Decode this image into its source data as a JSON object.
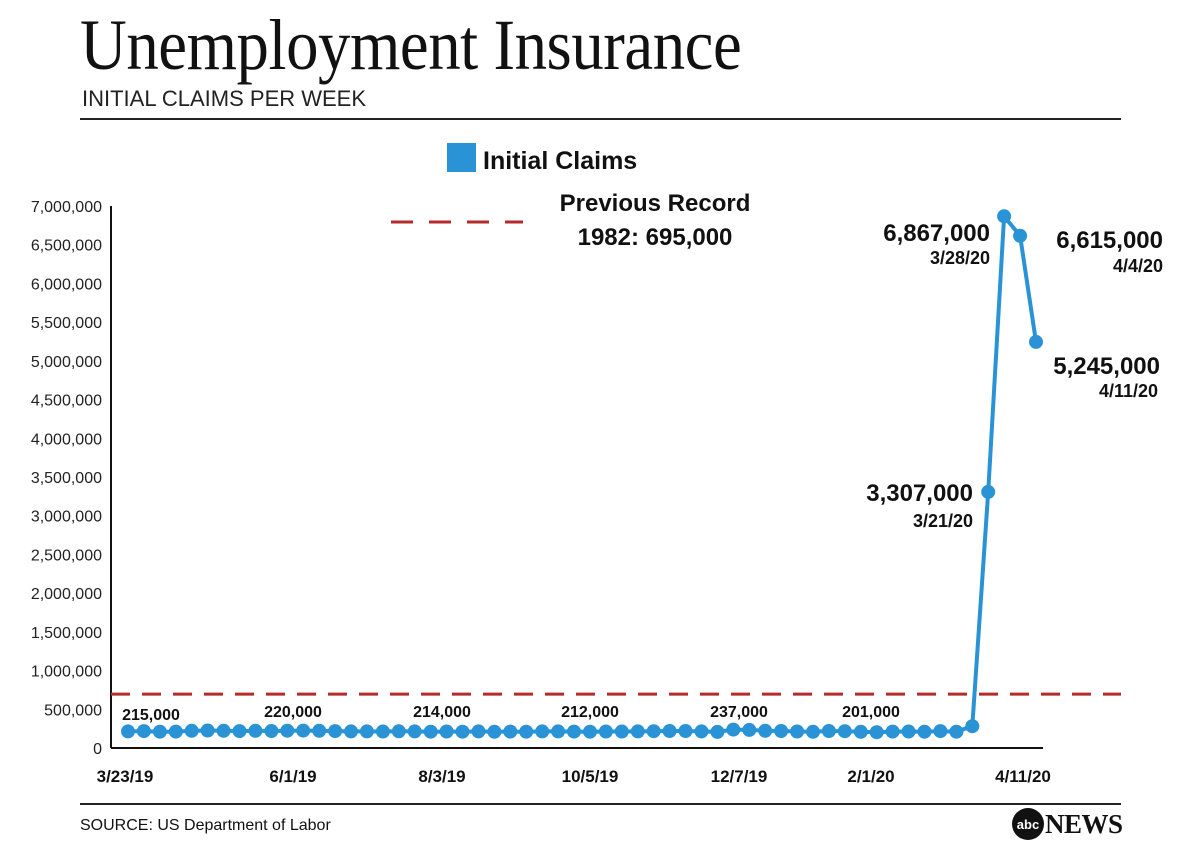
{
  "header": {
    "title": "Unemployment Insurance",
    "subtitle": "INITIAL CLAIMS PER WEEK"
  },
  "footer": {
    "source": "SOURCE: US Department of Labor",
    "logo_mark": "abc",
    "logo_text": "NEWS"
  },
  "colors": {
    "series": "#2a93d5",
    "record_line": "#b52a2a",
    "text": "#111111"
  },
  "chart_data": {
    "type": "line",
    "title": "Unemployment Insurance",
    "subtitle": "INITIAL CLAIMS PER WEEK",
    "legend": {
      "label": "Initial Claims",
      "placement": "top-center"
    },
    "ylim": [
      0,
      7000000
    ],
    "y_ticks": [
      "7,000,000",
      "6,500,000",
      "6,000,000",
      "5,500,000",
      "5,000,000",
      "4,500,000",
      "4,000,000",
      "3,500,000",
      "3,000,000",
      "2,500,000",
      "2,000,000",
      "1,500,000",
      "1,000,000",
      "500,000",
      "0"
    ],
    "x_tick_labels": [
      "3/23/19",
      "6/1/19",
      "8/3/19",
      "10/5/19",
      "12/7/19",
      "2/1/20",
      "4/11/20"
    ],
    "grid": false,
    "series": [
      {
        "name": "Initial Claims",
        "values": [
          215000,
          218000,
          210000,
          212000,
          222000,
          226000,
          222000,
          218000,
          222000,
          220000,
          224000,
          225000,
          222000,
          218000,
          215000,
          214000,
          213000,
          216000,
          214000,
          211000,
          213000,
          211000,
          215000,
          209000,
          212000,
          211000,
          214000,
          215000,
          212000,
          210000,
          213000,
          213000,
          215000,
          217000,
          219000,
          220000,
          215000,
          208000,
          237000,
          234000,
          222000,
          220000,
          213000,
          209000,
          220000,
          217000,
          209000,
          204000,
          212000,
          213000,
          210000,
          218000,
          211000,
          281000,
          3307000,
          6867000,
          6615000,
          5245000
        ]
      }
    ],
    "reference_line": {
      "value": 695000,
      "label_line1": "Previous Record",
      "label_line2": "1982: 695,000"
    },
    "value_labels": [
      "215,000",
      "220,000",
      "214,000",
      "212,000",
      "237,000",
      "201,000"
    ],
    "annotations": [
      {
        "value": "3,307,000",
        "date": "3/21/20"
      },
      {
        "value": "6,867,000",
        "date": "3/28/20"
      },
      {
        "value": "6,615,000",
        "date": "4/4/20"
      },
      {
        "value": "5,245,000",
        "date": "4/11/20"
      }
    ]
  }
}
